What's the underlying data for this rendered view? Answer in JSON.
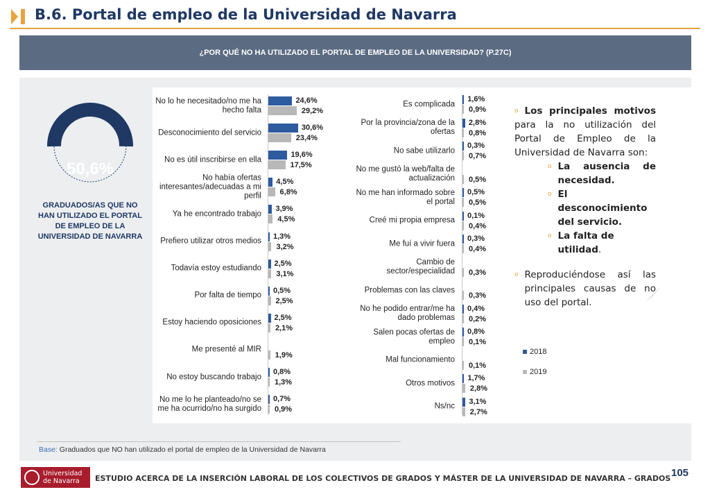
{
  "header": {
    "title": "B.6. Portal de empleo de la Universidad de Navarra"
  },
  "banner": {
    "question": "¿POR QUÉ NO HA UTILIZADO EL PORTAL DE EMPLEO DE LA UNIVERSIDAD? (P.27C)"
  },
  "donut": {
    "value": 50.6,
    "label": "50,6%",
    "caption": "GRADUADOS/AS QUE NO HAN UTILIZADO EL PORTAL DE EMPLEO DE LA UNIVERSIDAD DE NAVARRA"
  },
  "colors": {
    "s2018": "#2e5aa0",
    "s2019": "#b8b8b8",
    "accent": "#e8a33d",
    "navy": "#1f3864"
  },
  "chart_data": {
    "type": "bar",
    "orientation": "horizontal",
    "series_names": [
      "2018",
      "2019"
    ],
    "xlim": [
      0,
      32
    ],
    "categories": [
      {
        "label": "No lo he necesitado/no me ha hecho falta",
        "v2018": 24.6,
        "v2019": 29.2,
        "l2018": "24,6%",
        "l2019": "29,2%"
      },
      {
        "label": "Desconocimiento del servicio",
        "v2018": 30.6,
        "v2019": 23.4,
        "l2018": "30,6%",
        "l2019": "23,4%"
      },
      {
        "label": "No es útil inscribirse en ella",
        "v2018": 19.6,
        "v2019": 17.5,
        "l2018": "19,6%",
        "l2019": "17,5%"
      },
      {
        "label": "No había ofertas interesantes/adecuadas a mi perfil",
        "v2018": 4.5,
        "v2019": 6.8,
        "l2018": "4,5%",
        "l2019": "6,8%"
      },
      {
        "label": "Ya he encontrado trabajo",
        "v2018": 3.9,
        "v2019": 4.5,
        "l2018": "3,9%",
        "l2019": "4,5%"
      },
      {
        "label": "Prefiero utilizar otros medios",
        "v2018": 1.3,
        "v2019": 3.2,
        "l2018": "1,3%",
        "l2019": "3,2%"
      },
      {
        "label": "Todavía estoy estudiando",
        "v2018": 2.5,
        "v2019": 3.1,
        "l2018": "2,5%",
        "l2019": "3,1%"
      },
      {
        "label": "Por falta de tiempo",
        "v2018": 0.5,
        "v2019": 2.5,
        "l2018": "0,5%",
        "l2019": "2,5%"
      },
      {
        "label": "Estoy haciendo oposiciones",
        "v2018": 2.5,
        "v2019": 2.1,
        "l2018": "2,5%",
        "l2019": "2,1%"
      },
      {
        "label": "Me presenté al MIR",
        "v2018": 0,
        "v2019": 1.9,
        "l2018": "",
        "l2019": "1,9%"
      },
      {
        "label": "No estoy buscando trabajo",
        "v2018": 0.8,
        "v2019": 1.3,
        "l2018": "0,8%",
        "l2019": "1,3%"
      },
      {
        "label": "No me lo he planteado/no se me ha ocurrido/no ha surgido",
        "v2018": 0.7,
        "v2019": 0.9,
        "l2018": "0,7%",
        "l2019": "0,9%"
      },
      {
        "label": "Es complicada",
        "v2018": 1.6,
        "v2019": 0.9,
        "l2018": "1,6%",
        "l2019": "0,9%"
      },
      {
        "label": "Por la provincia/zona de la ofertas",
        "v2018": 2.8,
        "v2019": 0.8,
        "l2018": "2,8%",
        "l2019": "0,8%"
      },
      {
        "label": "No sabe utilizarlo",
        "v2018": 0.3,
        "v2019": 0.7,
        "l2018": "0,3%",
        "l2019": "0,7%"
      },
      {
        "label": "No me gustó la web/falta de actualización",
        "v2018": 0,
        "v2019": 0.5,
        "l2018": "",
        "l2019": "0,5%"
      },
      {
        "label": "No me han informado sobre el portal",
        "v2018": 0.5,
        "v2019": 0.5,
        "l2018": "0,5%",
        "l2019": "0,5%"
      },
      {
        "label": "Creé mi propia empresa",
        "v2018": 0.1,
        "v2019": 0.4,
        "l2018": "0,1%",
        "l2019": "0,4%"
      },
      {
        "label": "Me fuí a vivir fuera",
        "v2018": 0.3,
        "v2019": 0.4,
        "l2018": "0,3%",
        "l2019": "0,4%"
      },
      {
        "label": "Cambio de sector/especialidad",
        "v2018": 0,
        "v2019": 0.3,
        "l2018": "",
        "l2019": "0,3%"
      },
      {
        "label": "Problemas con las claves",
        "v2018": 0,
        "v2019": 0.3,
        "l2018": "",
        "l2019": "0,3%"
      },
      {
        "label": "No he podido entrar/me ha dado problemas",
        "v2018": 0.4,
        "v2019": 0.2,
        "l2018": "0,4%",
        "l2019": "0,2%"
      },
      {
        "label": "Salen pocas ofertas de empleo",
        "v2018": 0.8,
        "v2019": 0.1,
        "l2018": "0,8%",
        "l2019": "0,1%"
      },
      {
        "label": "Mal funcionamiento",
        "v2018": 0,
        "v2019": 0.1,
        "l2018": "",
        "l2019": "0,1%"
      },
      {
        "label": "Otros motivos",
        "v2018": 1.7,
        "v2019": 2.8,
        "l2018": "1,7%",
        "l2019": "2,8%"
      },
      {
        "label": "Ns/nc",
        "v2018": 3.1,
        "v2019": 2.7,
        "l2018": "3,1%",
        "l2019": "2,7%"
      }
    ],
    "legend": [
      "2018",
      "2019"
    ]
  },
  "summary": {
    "intro_words": [
      "Los",
      "principales",
      "motivos"
    ],
    "intro_rest": "para la no utilización del Portal de Empleo de la Universidad de Navarra son:",
    "reasons": [
      "La ausencia de necesidad.",
      "El desconocimiento del servicio.",
      "La falta de utilidad"
    ],
    "reason3_suffix": ".",
    "outro": "Reproduciéndose así las principales causas de no uso del portal."
  },
  "footnote": {
    "key": "Base:",
    "text": " Graduados que NO han utilizado el  portal de empleo de la Universidad de Navarra"
  },
  "footer": {
    "logo_line1": "Universidad",
    "logo_line2": "de Navarra",
    "study": "ESTUDIO ACERCA DE LA INSERCIÓN LABORAL DE LOS COLECTIVOS DE GRADOS Y MÁSTER DE LA UNIVERSIDAD DE NAVARRA – GRADOS",
    "page": "105"
  }
}
